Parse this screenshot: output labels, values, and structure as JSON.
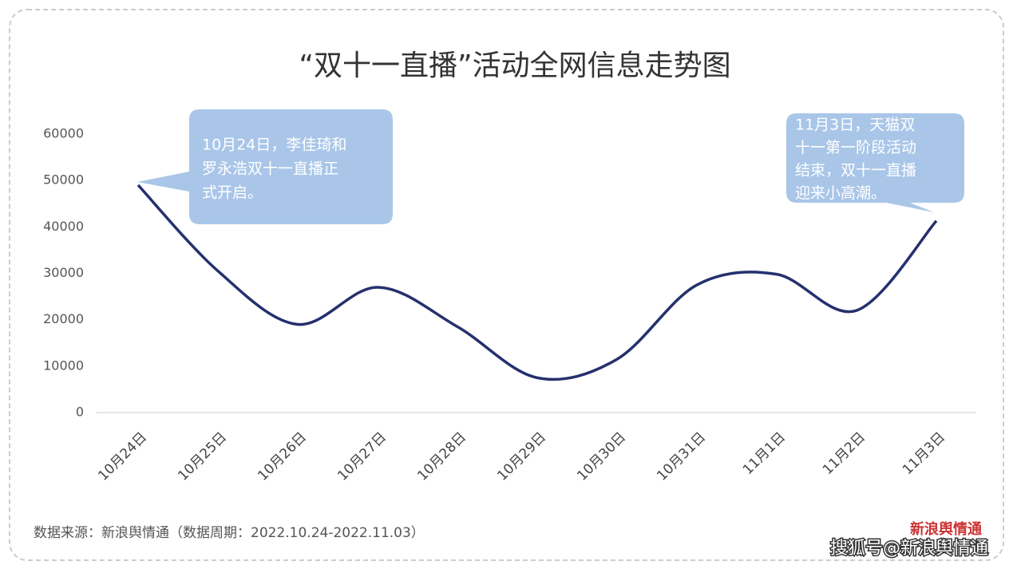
{
  "chart_data": {
    "type": "line",
    "title": "“双十一直播”活动全网信息走势图",
    "categories": [
      "10月24日",
      "10月25日",
      "10月26日",
      "10月27日",
      "10月28日",
      "10月29日",
      "10月30日",
      "10月31日",
      "11月1日",
      "11月2日",
      "11月3日"
    ],
    "values": [
      49000,
      30500,
      19000,
      27000,
      18500,
      7500,
      11500,
      27500,
      29800,
      22000,
      41300
    ],
    "color": "#25306e",
    "ylim": [
      0,
      60000
    ],
    "yticks": [
      0,
      10000,
      20000,
      30000,
      40000,
      50000,
      60000
    ],
    "grid": false,
    "annotations": [
      {
        "lines": [
          "10月24日，李佳琦和",
          "罗永浩双十一直播正",
          "式开启。"
        ]
      },
      {
        "lines": [
          "11月3日，天猫双",
          "十一第一阶段活动",
          "结束，双十一直播",
          "迎来小高潮。"
        ]
      }
    ],
    "source": "数据来源：新浪舆情通（数据周期：2022.10.24-2022.11.03）",
    "logo": "新浪舆情通",
    "watermark": "搜狐号@新浪舆情通"
  }
}
